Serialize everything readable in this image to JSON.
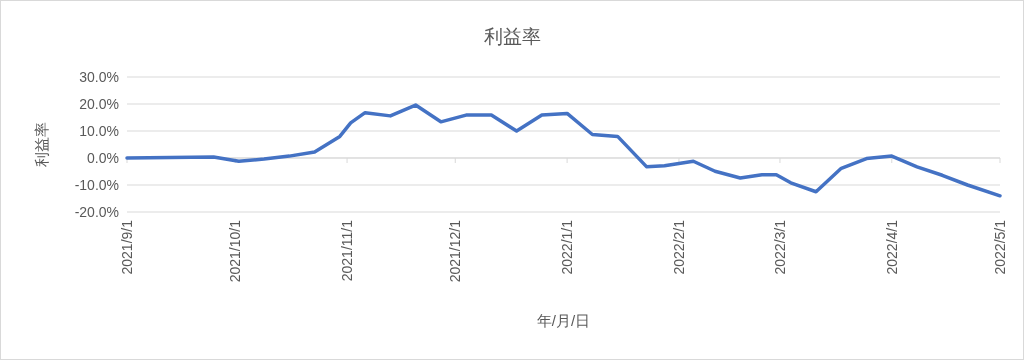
{
  "chart_data": {
    "type": "line",
    "title": "利益率",
    "xlabel": "年/月/日",
    "ylabel": "利益率",
    "x": [
      "2021-09-01",
      "2021-09-07",
      "2021-09-13",
      "2021-09-19",
      "2021-09-25",
      "2021-10-02",
      "2021-10-09",
      "2021-10-16",
      "2021-10-23",
      "2021-10-30",
      "2021-11-02",
      "2021-11-06",
      "2021-11-13",
      "2021-11-20",
      "2021-11-27",
      "2021-12-04",
      "2021-12-11",
      "2021-12-18",
      "2021-12-25",
      "2022-01-01",
      "2022-01-08",
      "2022-01-15",
      "2022-01-23",
      "2022-01-28",
      "2022-02-05",
      "2022-02-11",
      "2022-02-18",
      "2022-02-24",
      "2022-02-28",
      "2022-03-04",
      "2022-03-11",
      "2022-03-18",
      "2022-03-25",
      "2022-04-01",
      "2022-04-08",
      "2022-04-15",
      "2022-04-22",
      "2022-05-01"
    ],
    "series": [
      {
        "color": "#4472c4",
        "values": [
          0.0,
          0.1,
          0.2,
          0.3,
          0.4,
          -1.2,
          -0.4,
          0.7,
          2.2,
          8.0,
          13.0,
          16.8,
          15.6,
          19.6,
          13.4,
          15.9,
          15.9,
          10.0,
          15.9,
          16.5,
          8.7,
          8.0,
          -3.2,
          -2.9,
          -1.2,
          -4.9,
          -7.4,
          -6.2,
          -6.2,
          -9.2,
          -12.5,
          -3.8,
          -0.2,
          0.7,
          -3.3,
          -6.4,
          -10.0,
          -14.0
        ]
      }
    ],
    "xlim": [
      "2021-09-01",
      "2022-05-01"
    ],
    "xticks": [
      {
        "value": "2021-09-01",
        "label": "2021/9/1"
      },
      {
        "value": "2021-10-01",
        "label": "2021/10/1"
      },
      {
        "value": "2021-11-01",
        "label": "2021/11/1"
      },
      {
        "value": "2021-12-01",
        "label": "2021/12/1"
      },
      {
        "value": "2022-01-01",
        "label": "2022/1/1"
      },
      {
        "value": "2022-02-01",
        "label": "2022/2/1"
      },
      {
        "value": "2022-03-01",
        "label": "2022/3/1"
      },
      {
        "value": "2022-04-01",
        "label": "2022/4/1"
      },
      {
        "value": "2022-05-01",
        "label": "2022/5/1"
      }
    ],
    "ylim": [
      -20,
      30
    ],
    "yticks": [
      {
        "value": -20,
        "label": "-20.0%"
      },
      {
        "value": -10,
        "label": "-10.0%"
      },
      {
        "value": 0,
        "label": "0.0%"
      },
      {
        "value": 10,
        "label": "10.0%"
      },
      {
        "value": 20,
        "label": "20.0%"
      },
      {
        "value": 30,
        "label": "30.0%"
      }
    ],
    "grid": "y",
    "marker": "none",
    "line_style": "solid"
  }
}
